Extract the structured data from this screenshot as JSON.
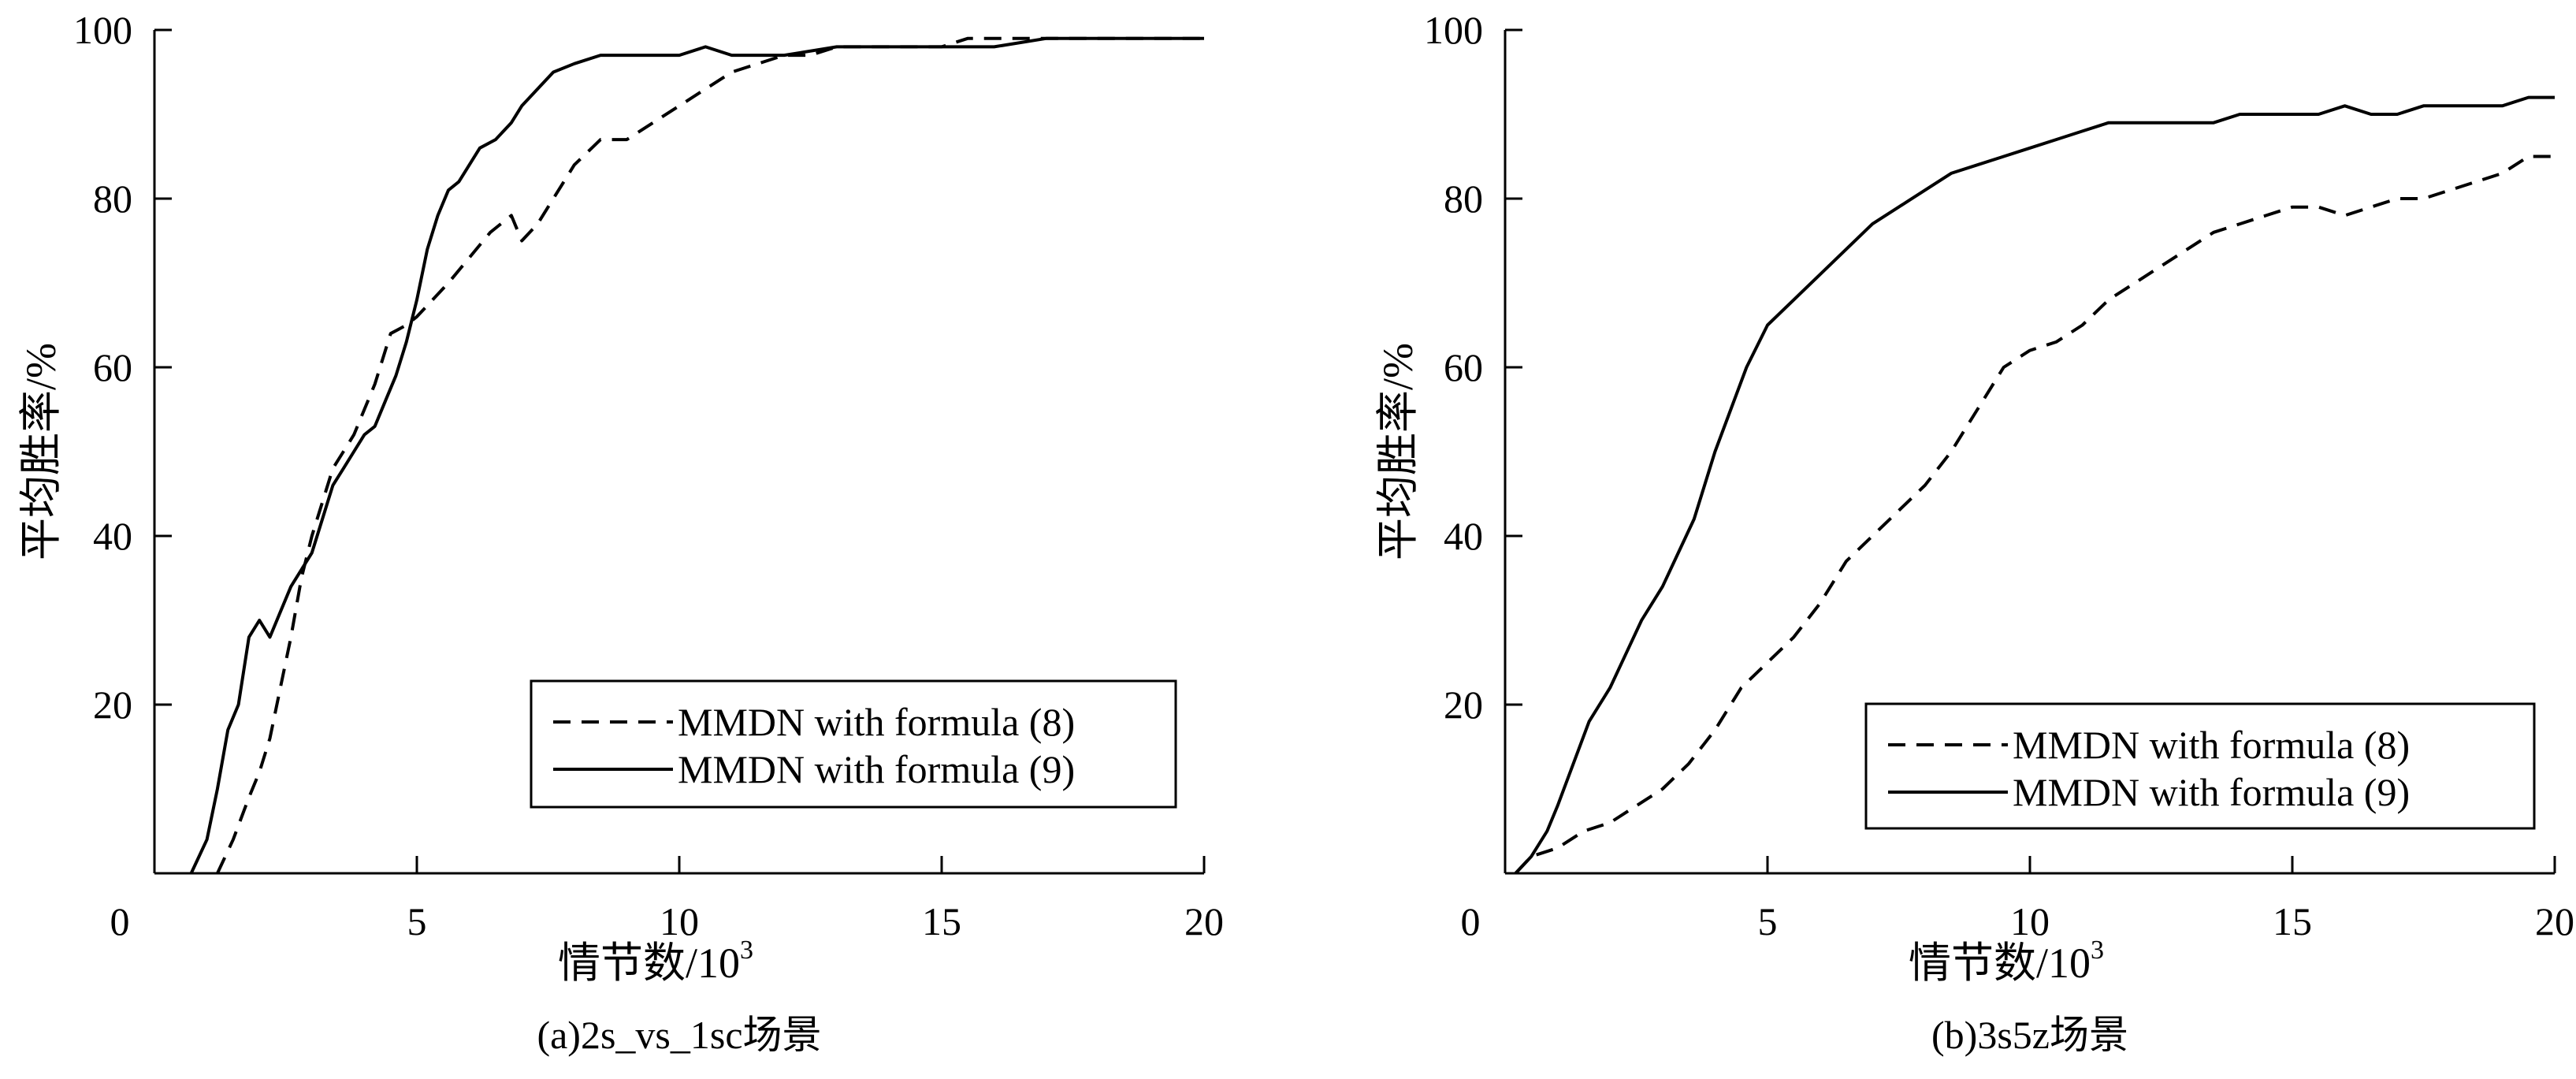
{
  "chart_data": [
    {
      "type": "line",
      "caption": "(a)2s_vs_1sc场景",
      "xlabel": "情节数/10",
      "xlabel_exp": "3",
      "ylabel": "平均胜率/%",
      "xlim": [
        0,
        20
      ],
      "ylim": [
        0,
        100
      ],
      "xticks": [
        0,
        5,
        10,
        15,
        20
      ],
      "yticks": [
        20,
        40,
        60,
        80,
        100
      ],
      "grid": false,
      "legend_position": "lower-right",
      "series": [
        {
          "name": "MMDN with formula (8)",
          "style": "dashed",
          "x": [
            1.2,
            1.5,
            1.8,
            2.0,
            2.2,
            2.4,
            2.6,
            2.8,
            3.0,
            3.2,
            3.4,
            3.6,
            3.8,
            4.0,
            4.2,
            4.5,
            4.8,
            5.0,
            5.3,
            5.6,
            6.0,
            6.4,
            6.8,
            7.0,
            7.3,
            7.6,
            8.0,
            8.5,
            9.0,
            9.5,
            10.0,
            10.5,
            11.0,
            11.5,
            12.0,
            12.5,
            13.0,
            13.5,
            14.0,
            14.5,
            15.0,
            15.5,
            16.0,
            17.0,
            18.0,
            19.0,
            19.5,
            20.0
          ],
          "y": [
            0,
            4,
            9,
            12,
            16,
            22,
            28,
            35,
            40,
            44,
            48,
            50,
            52,
            55,
            58,
            64,
            65,
            66,
            68,
            70,
            73,
            76,
            78,
            75,
            77,
            80,
            84,
            87,
            87,
            89,
            91,
            93,
            95,
            96,
            97,
            97,
            98,
            98,
            98,
            98,
            98,
            99,
            99,
            99,
            99,
            99,
            99,
            99
          ]
        },
        {
          "name": "MMDN with formula (9)",
          "style": "solid",
          "x": [
            0.7,
            1.0,
            1.2,
            1.4,
            1.6,
            1.8,
            2.0,
            2.2,
            2.4,
            2.6,
            2.8,
            3.0,
            3.2,
            3.4,
            3.6,
            3.8,
            4.0,
            4.2,
            4.4,
            4.6,
            4.8,
            5.0,
            5.2,
            5.4,
            5.6,
            5.8,
            6.0,
            6.2,
            6.5,
            6.8,
            7.0,
            7.3,
            7.6,
            8.0,
            8.5,
            9.0,
            9.5,
            10.0,
            10.5,
            11.0,
            11.5,
            12.0,
            13.0,
            14.0,
            15.0,
            16.0,
            17.0,
            18.0,
            19.0,
            20.0
          ],
          "y": [
            0,
            4,
            10,
            17,
            20,
            28,
            30,
            28,
            31,
            34,
            36,
            38,
            42,
            46,
            48,
            50,
            52,
            53,
            56,
            59,
            63,
            68,
            74,
            78,
            81,
            82,
            84,
            86,
            87,
            89,
            91,
            93,
            95,
            96,
            97,
            97,
            97,
            97,
            98,
            97,
            97,
            97,
            98,
            98,
            98,
            98,
            99,
            99,
            99,
            99
          ]
        }
      ]
    },
    {
      "type": "line",
      "caption": "(b)3s5z场景",
      "xlabel": "情节数/10",
      "xlabel_exp": "3",
      "ylabel": "平均胜率/%",
      "xlim": [
        0,
        20
      ],
      "ylim": [
        0,
        100
      ],
      "xticks": [
        0,
        5,
        10,
        15,
        20
      ],
      "yticks": [
        20,
        40,
        60,
        80,
        100
      ],
      "grid": false,
      "legend_position": "lower-right",
      "series": [
        {
          "name": "MMDN with formula (8)",
          "style": "dashed",
          "x": [
            0.2,
            0.5,
            1.0,
            1.5,
            2.0,
            2.5,
            3.0,
            3.5,
            4.0,
            4.5,
            5.0,
            5.5,
            6.0,
            6.5,
            7.0,
            7.5,
            8.0,
            8.5,
            9.0,
            9.5,
            10.0,
            10.5,
            11.0,
            11.5,
            12.0,
            12.5,
            13.0,
            13.5,
            14.0,
            14.5,
            15.0,
            15.5,
            16.0,
            16.5,
            17.0,
            17.5,
            18.0,
            18.5,
            19.0,
            19.5,
            20.0
          ],
          "y": [
            0,
            2,
            3,
            5,
            6,
            8,
            10,
            13,
            17,
            22,
            25,
            28,
            32,
            37,
            40,
            43,
            46,
            50,
            55,
            60,
            62,
            63,
            65,
            68,
            70,
            72,
            74,
            76,
            77,
            78,
            79,
            79,
            78,
            79,
            80,
            80,
            81,
            82,
            83,
            85,
            85
          ]
        },
        {
          "name": "MMDN with formula (9)",
          "style": "solid",
          "x": [
            0.2,
            0.5,
            0.8,
            1.0,
            1.3,
            1.6,
            2.0,
            2.3,
            2.6,
            3.0,
            3.3,
            3.6,
            4.0,
            4.3,
            4.6,
            5.0,
            5.5,
            6.0,
            6.5,
            7.0,
            7.5,
            8.0,
            8.5,
            9.0,
            9.5,
            10.0,
            10.5,
            11.0,
            11.5,
            12.0,
            12.5,
            13.0,
            13.5,
            14.0,
            14.5,
            15.0,
            15.5,
            16.0,
            16.5,
            17.0,
            17.5,
            18.0,
            18.5,
            19.0,
            19.5,
            20.0
          ],
          "y": [
            0,
            2,
            5,
            8,
            13,
            18,
            22,
            26,
            30,
            34,
            38,
            42,
            50,
            55,
            60,
            65,
            68,
            71,
            74,
            77,
            79,
            81,
            83,
            84,
            85,
            86,
            87,
            88,
            89,
            89,
            89,
            89,
            89,
            90,
            90,
            90,
            90,
            91,
            90,
            90,
            91,
            91,
            91,
            91,
            92,
            92
          ]
        }
      ]
    }
  ]
}
